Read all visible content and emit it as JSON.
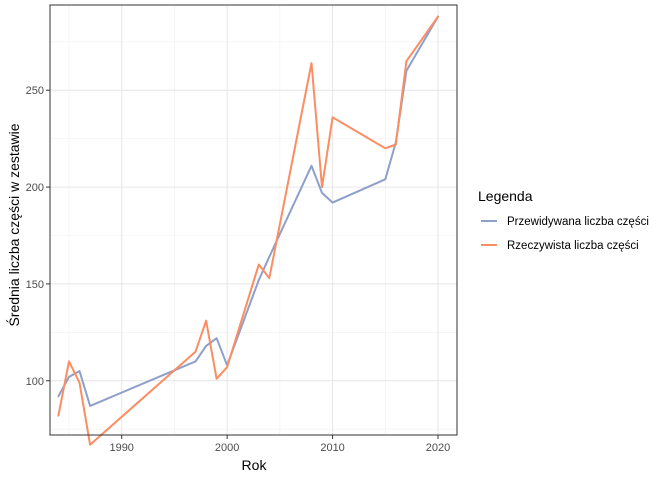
{
  "chart_data": {
    "type": "line",
    "xlabel": "Rok",
    "ylabel": "Średnia liczba części w zestawie",
    "xlim": [
      1983.2,
      2021.8
    ],
    "ylim": [
      72,
      294
    ],
    "x_ticks": [
      1990,
      2000,
      2010,
      2020
    ],
    "y_ticks": [
      100,
      150,
      200,
      250
    ],
    "grid": true,
    "legend": {
      "title": "Legenda",
      "placement": "right"
    },
    "series": [
      {
        "name": "Przewidywana liczba części",
        "color": "#8DA0CB",
        "points": [
          {
            "x": 1984,
            "y": 92
          },
          {
            "x": 1985,
            "y": 102
          },
          {
            "x": 1986,
            "y": 105
          },
          {
            "x": 1987,
            "y": 87
          },
          {
            "x": 1997,
            "y": 110
          },
          {
            "x": 1998,
            "y": 118
          },
          {
            "x": 1999,
            "y": 122
          },
          {
            "x": 2000,
            "y": 108
          },
          {
            "x": 2003,
            "y": 152
          },
          {
            "x": 2004,
            "y": 164
          },
          {
            "x": 2008,
            "y": 211
          },
          {
            "x": 2009,
            "y": 197
          },
          {
            "x": 2010,
            "y": 192
          },
          {
            "x": 2015,
            "y": 204
          },
          {
            "x": 2016,
            "y": 223
          },
          {
            "x": 2017,
            "y": 260
          },
          {
            "x": 2020,
            "y": 288
          }
        ]
      },
      {
        "name": "Rzeczywista liczba części",
        "color": "#FC8D62",
        "points": [
          {
            "x": 1984,
            "y": 82
          },
          {
            "x": 1985,
            "y": 110
          },
          {
            "x": 1986,
            "y": 99
          },
          {
            "x": 1987,
            "y": 67
          },
          {
            "x": 1997,
            "y": 115
          },
          {
            "x": 1998,
            "y": 131
          },
          {
            "x": 1999,
            "y": 101
          },
          {
            "x": 2000,
            "y": 107
          },
          {
            "x": 2003,
            "y": 160
          },
          {
            "x": 2004,
            "y": 153
          },
          {
            "x": 2008,
            "y": 264
          },
          {
            "x": 2009,
            "y": 200
          },
          {
            "x": 2010,
            "y": 236
          },
          {
            "x": 2015,
            "y": 220
          },
          {
            "x": 2016,
            "y": 222
          },
          {
            "x": 2017,
            "y": 265
          },
          {
            "x": 2020,
            "y": 288
          }
        ]
      }
    ]
  }
}
